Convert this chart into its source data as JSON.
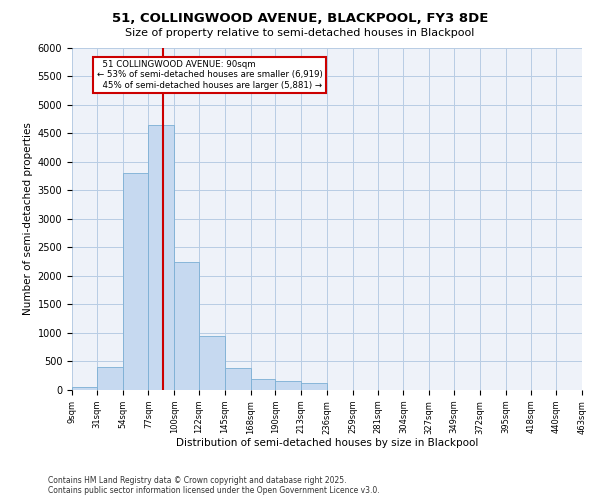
{
  "title_line1": "51, COLLINGWOOD AVENUE, BLACKPOOL, FY3 8DE",
  "title_line2": "Size of property relative to semi-detached houses in Blackpool",
  "xlabel": "Distribution of semi-detached houses by size in Blackpool",
  "ylabel": "Number of semi-detached properties",
  "bins": [
    9,
    31,
    54,
    77,
    100,
    122,
    145,
    168,
    190,
    213,
    236,
    259,
    281,
    304,
    327,
    349,
    372,
    395,
    418,
    440,
    463
  ],
  "bin_labels": [
    "9sqm",
    "31sqm",
    "54sqm",
    "77sqm",
    "100sqm",
    "122sqm",
    "145sqm",
    "168sqm",
    "190sqm",
    "213sqm",
    "236sqm",
    "259sqm",
    "281sqm",
    "304sqm",
    "327sqm",
    "349sqm",
    "372sqm",
    "395sqm",
    "418sqm",
    "440sqm",
    "463sqm"
  ],
  "counts": [
    50,
    400,
    3800,
    4650,
    2250,
    950,
    380,
    200,
    150,
    130,
    0,
    0,
    0,
    0,
    0,
    0,
    0,
    0,
    0,
    0
  ],
  "bar_color": "#c6d9f0",
  "bar_edge_color": "#7bafd4",
  "property_size": 90,
  "property_label": "51 COLLINGWOOD AVENUE: 90sqm",
  "smaller_pct": 53,
  "smaller_count": 6919,
  "larger_pct": 45,
  "larger_count": 5881,
  "vline_color": "#cc0000",
  "annotation_box_color": "#cc0000",
  "background_color": "#eef2f9",
  "grid_color": "#b8cce4",
  "ylim": [
    0,
    6000
  ],
  "yticks": [
    0,
    500,
    1000,
    1500,
    2000,
    2500,
    3000,
    3500,
    4000,
    4500,
    5000,
    5500,
    6000
  ],
  "footer": "Contains HM Land Registry data © Crown copyright and database right 2025.\nContains public sector information licensed under the Open Government Licence v3.0."
}
